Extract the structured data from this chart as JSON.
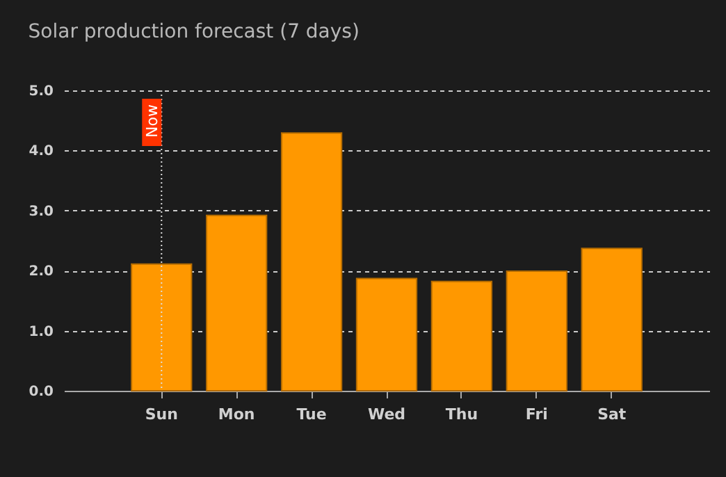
{
  "chart_data": {
    "type": "bar",
    "title": "Solar production forecast (7 days)",
    "categories": [
      "Sun",
      "Mon",
      "Tue",
      "Wed",
      "Thu",
      "Fri",
      "Sat"
    ],
    "values": [
      2.11,
      2.92,
      4.29,
      1.87,
      1.82,
      1.99,
      2.37
    ],
    "color": "#ff9800",
    "ylim": [
      0,
      5
    ],
    "yticks": [
      {
        "value": 0,
        "label": "0.0"
      },
      {
        "value": 1,
        "label": "1.0"
      },
      {
        "value": 2,
        "label": "2.0"
      },
      {
        "value": 3,
        "label": "3.0"
      },
      {
        "value": 4,
        "label": "4.0"
      },
      {
        "value": 5,
        "label": "5.0"
      }
    ],
    "grid": "y",
    "ref_lines": [
      {
        "axis": "x",
        "value": "Sun",
        "label": "Now",
        "color": "#dddddd",
        "line_style": "dotted"
      }
    ]
  }
}
